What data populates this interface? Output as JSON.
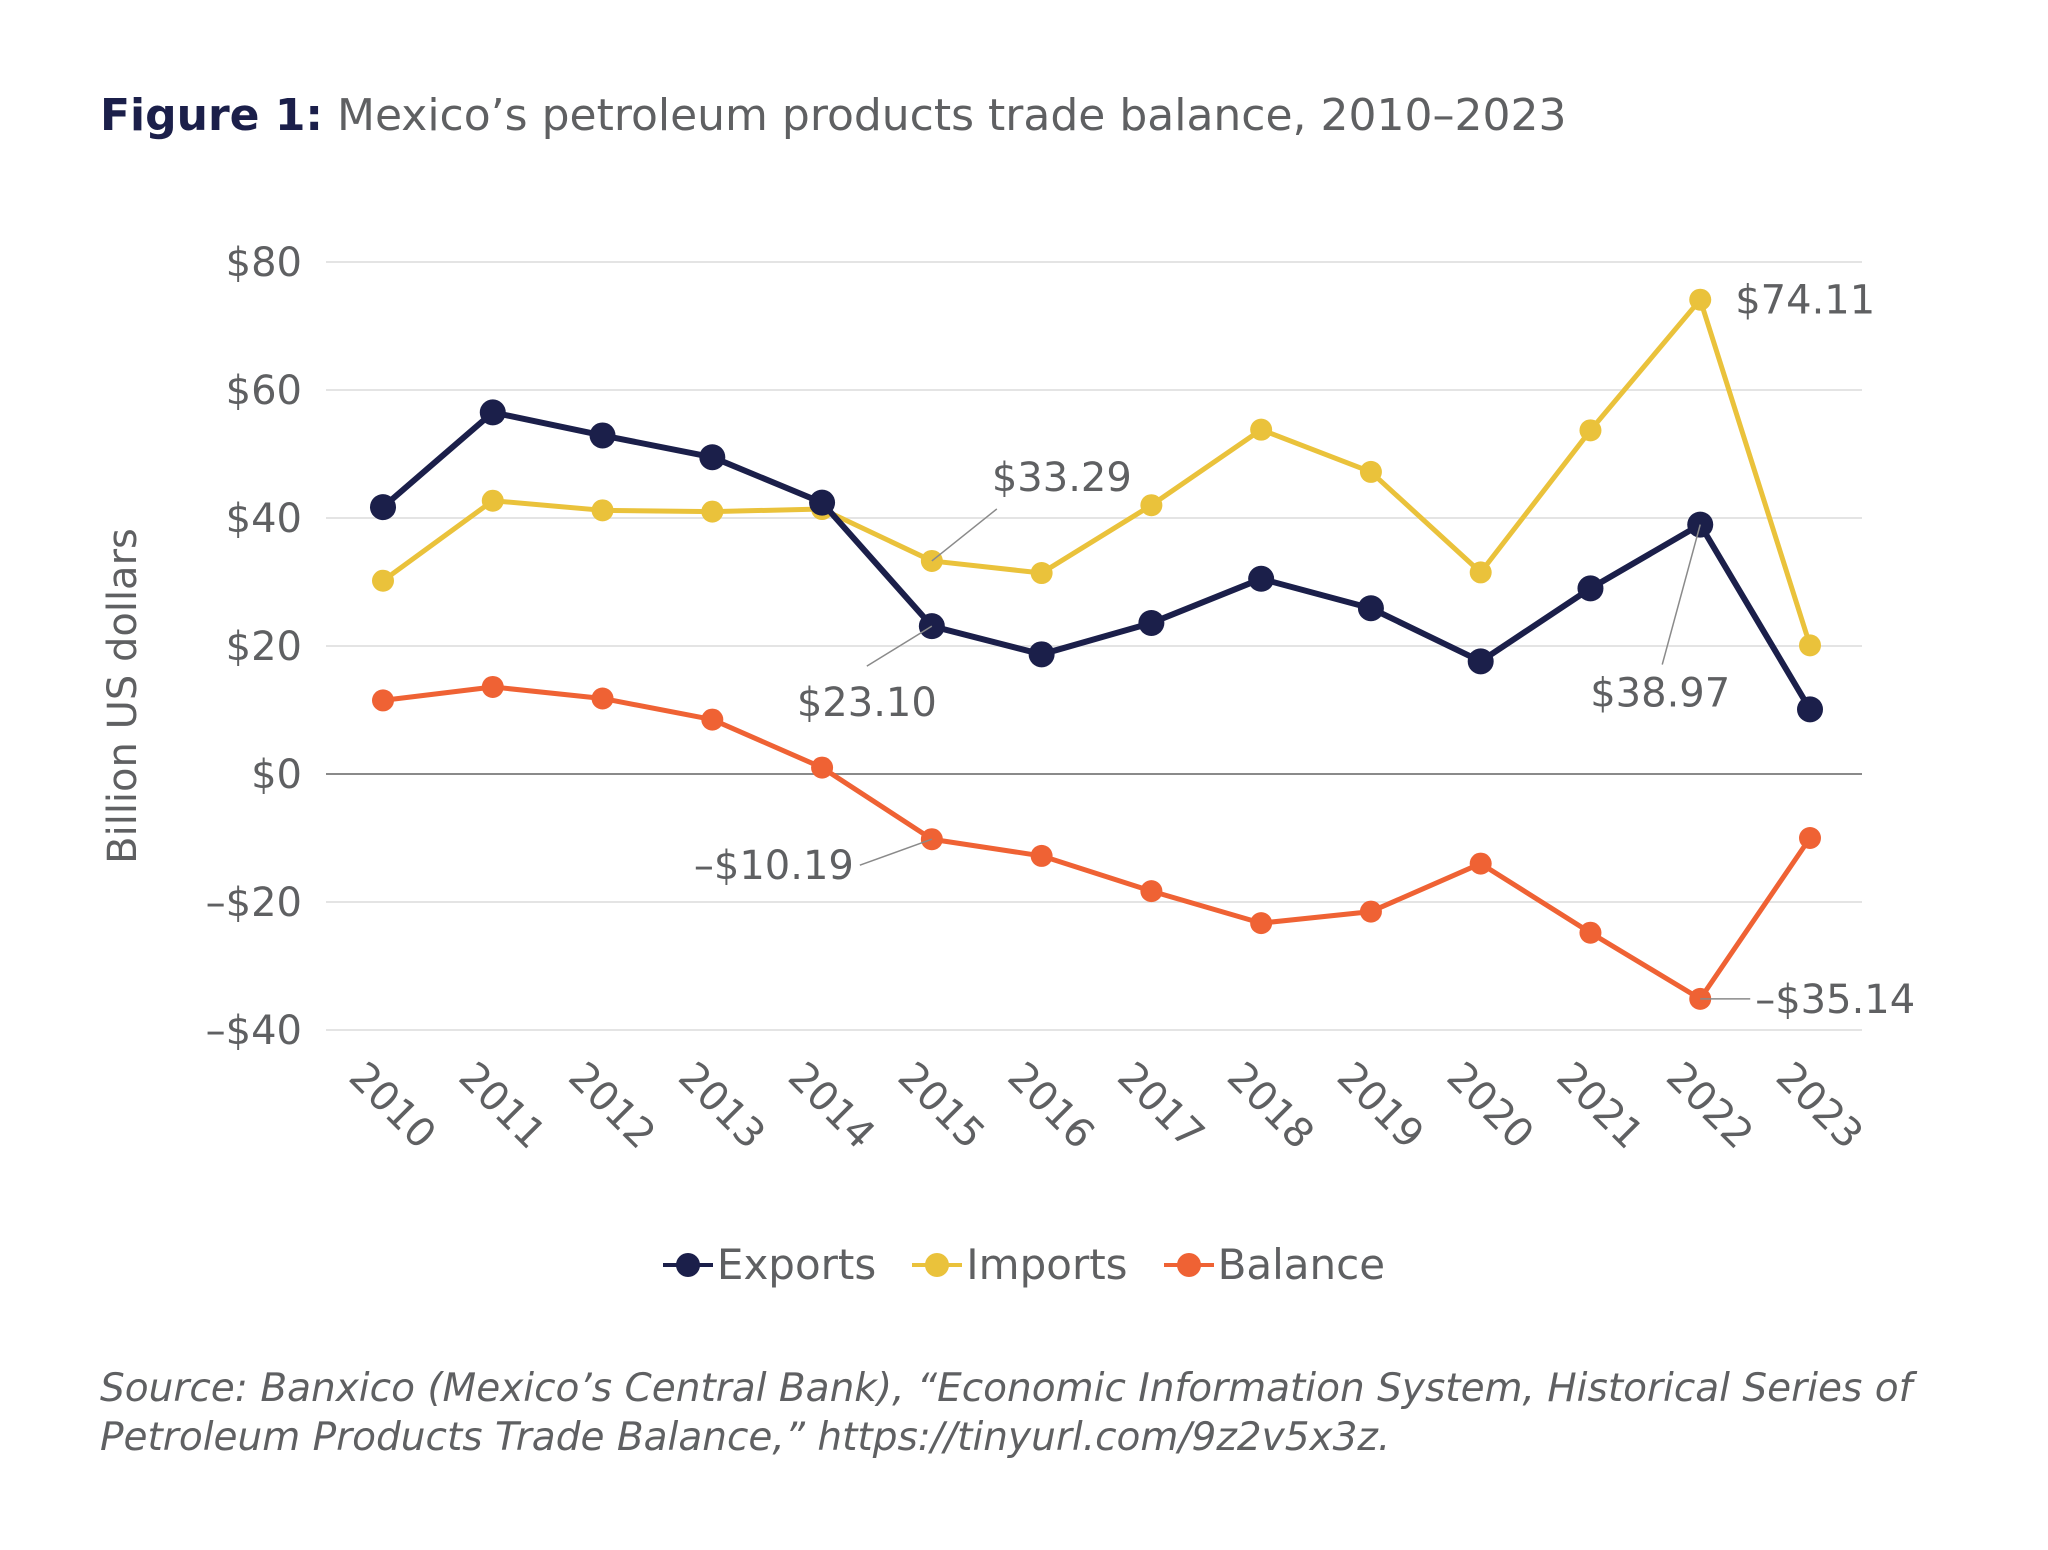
{
  "title": {
    "lead": "Figure 1:",
    "text": "Mexico’s petroleum products trade balance, 2010–2023"
  },
  "colors": {
    "exports": "#1b1f4a",
    "imports": "#eac23b",
    "balance": "#ef6234",
    "grid": "#dcdcdc",
    "zero_line": "#8a8a8a",
    "text": "#5f6062"
  },
  "chart_data": {
    "type": "line",
    "ylabel": "Billion US dollars",
    "xlabel": "",
    "ylim": [
      -40,
      80
    ],
    "yticks": [
      80,
      60,
      40,
      20,
      0,
      -20,
      -40
    ],
    "ytick_labels": [
      "$80",
      "$60",
      "$40",
      "$20",
      "$0",
      "–$20",
      "–$40"
    ],
    "categories": [
      "2010",
      "2011",
      "2012",
      "2013",
      "2014",
      "2015",
      "2016",
      "2017",
      "2018",
      "2019",
      "2020",
      "2021",
      "2022",
      "2023"
    ],
    "grid": true,
    "legend_position": "bottom",
    "series": [
      {
        "name": "Exports",
        "key": "exports",
        "values": [
          41.7,
          56.5,
          52.9,
          49.5,
          42.4,
          23.1,
          18.7,
          23.6,
          30.5,
          25.9,
          17.6,
          29.0,
          38.97,
          10.1
        ]
      },
      {
        "name": "Imports",
        "key": "imports",
        "values": [
          30.2,
          42.7,
          41.2,
          41.0,
          41.4,
          33.29,
          31.4,
          42.0,
          53.8,
          47.2,
          31.5,
          53.7,
          74.11,
          20.1
        ]
      },
      {
        "name": "Balance",
        "key": "balance",
        "values": [
          11.5,
          13.6,
          11.8,
          8.5,
          1.0,
          -10.19,
          -12.8,
          -18.3,
          -23.3,
          -21.5,
          -14.0,
          -24.8,
          -35.14,
          -10.0
        ]
      }
    ],
    "annotations": [
      {
        "text": "$33.29",
        "series": "Imports",
        "category": "2015",
        "value": 33.29
      },
      {
        "text": "$23.10",
        "series": "Exports",
        "category": "2015",
        "value": 23.1
      },
      {
        "text": "–$10.19",
        "series": "Balance",
        "category": "2015",
        "value": -10.19
      },
      {
        "text": "$74.11",
        "series": "Imports",
        "category": "2022",
        "value": 74.11
      },
      {
        "text": "$38.97",
        "series": "Exports",
        "category": "2022",
        "value": 38.97
      },
      {
        "text": "–$35.14",
        "series": "Balance",
        "category": "2022",
        "value": -35.14
      }
    ]
  },
  "source": "Source: Banxico (Mexico’s Central Bank), “Economic Information System, Historical Series of Petroleum Products Trade Balance,” https://tinyurl.com/9z2v5x3z."
}
